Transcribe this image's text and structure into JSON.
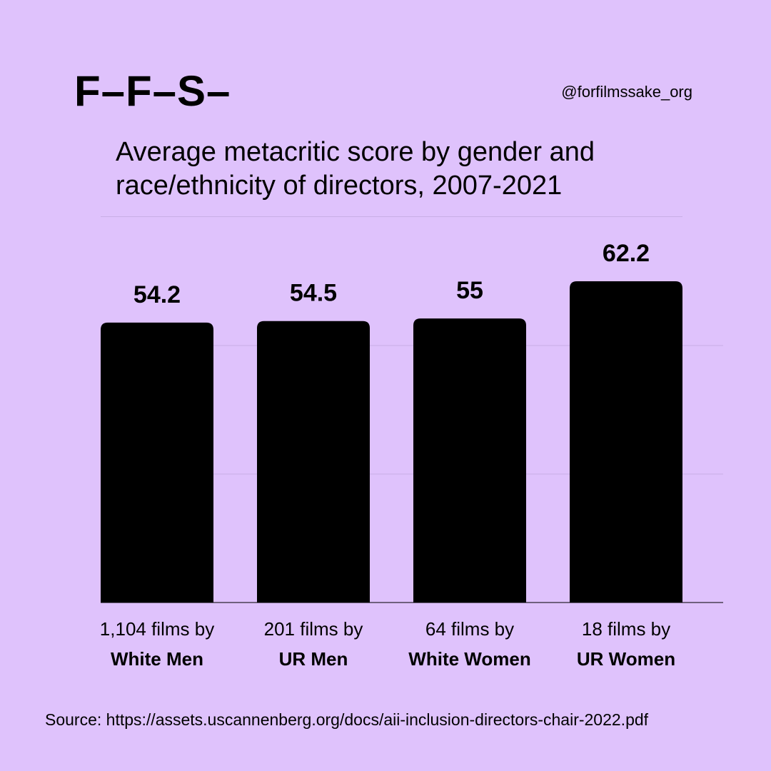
{
  "header": {
    "logo": "F–F–S–",
    "handle": "@forfilmssake_org"
  },
  "chart_data": {
    "type": "bar",
    "title": "Average metacritic score by gender and race/ethnicity of directors, 2007-2021",
    "categories": [
      {
        "count_label": "1,104 films by",
        "group": "White Men"
      },
      {
        "count_label": "201 films by",
        "group": "UR Men"
      },
      {
        "count_label": "64 films by",
        "group": "White Women"
      },
      {
        "count_label": "18 films by",
        "group": "UR Women"
      }
    ],
    "values": [
      54.2,
      54.5,
      55,
      62.2
    ],
    "value_labels": [
      "54.2",
      "54.5",
      "55",
      "62.2"
    ],
    "ylim": [
      0,
      65
    ],
    "grid": true,
    "bar_color": "#000000",
    "grid_color": "#c8aee6"
  },
  "footer": {
    "source": "Source: https://assets.uscannenberg.org/docs/aii-inclusion-directors-chair-2022.pdf"
  }
}
